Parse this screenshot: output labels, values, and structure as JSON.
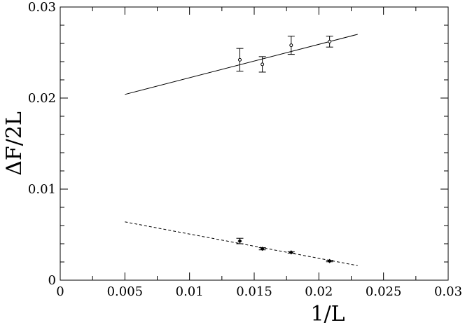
{
  "chart_data": {
    "type": "scatter",
    "xlabel": "1/L",
    "ylabel": "ΔF/2L",
    "xlim": [
      0,
      0.03
    ],
    "ylim": [
      0,
      0.03
    ],
    "x_ticks": [
      0,
      0.005,
      0.01,
      0.015,
      0.02,
      0.025,
      0.03
    ],
    "x_tick_labels": [
      "0",
      "0.005",
      "0.01",
      "0.015",
      "0.02",
      "0.025",
      "0.03"
    ],
    "y_ticks": [
      0,
      0.01,
      0.02,
      0.03
    ],
    "y_tick_labels": [
      "0",
      "0.01",
      "0.02",
      "0.03"
    ],
    "grid": false,
    "series": [
      {
        "marker": "circle",
        "points": [
          {
            "x": 0.01389,
            "y": 0.0242,
            "err": 0.00125
          },
          {
            "x": 0.01563,
            "y": 0.0237,
            "err": 0.00085
          },
          {
            "x": 0.01786,
            "y": 0.0258,
            "err": 0.001
          },
          {
            "x": 0.02083,
            "y": 0.0262,
            "err": 0.0006
          }
        ],
        "fit": {
          "style": "solid",
          "x": [
            0.005,
            0.023
          ],
          "y": [
            0.0204,
            0.027
          ]
        }
      },
      {
        "marker": "diamond",
        "points": [
          {
            "x": 0.01389,
            "y": 0.0043,
            "err": 0.0003
          },
          {
            "x": 0.01563,
            "y": 0.00345,
            "err": 0.00012
          },
          {
            "x": 0.01786,
            "y": 0.00305,
            "err": 8e-05
          },
          {
            "x": 0.02083,
            "y": 0.0021,
            "err": 8e-05
          }
        ],
        "fit": {
          "style": "dashed",
          "x": [
            0.005,
            0.023
          ],
          "y": [
            0.0064,
            0.0016
          ]
        }
      }
    ]
  }
}
